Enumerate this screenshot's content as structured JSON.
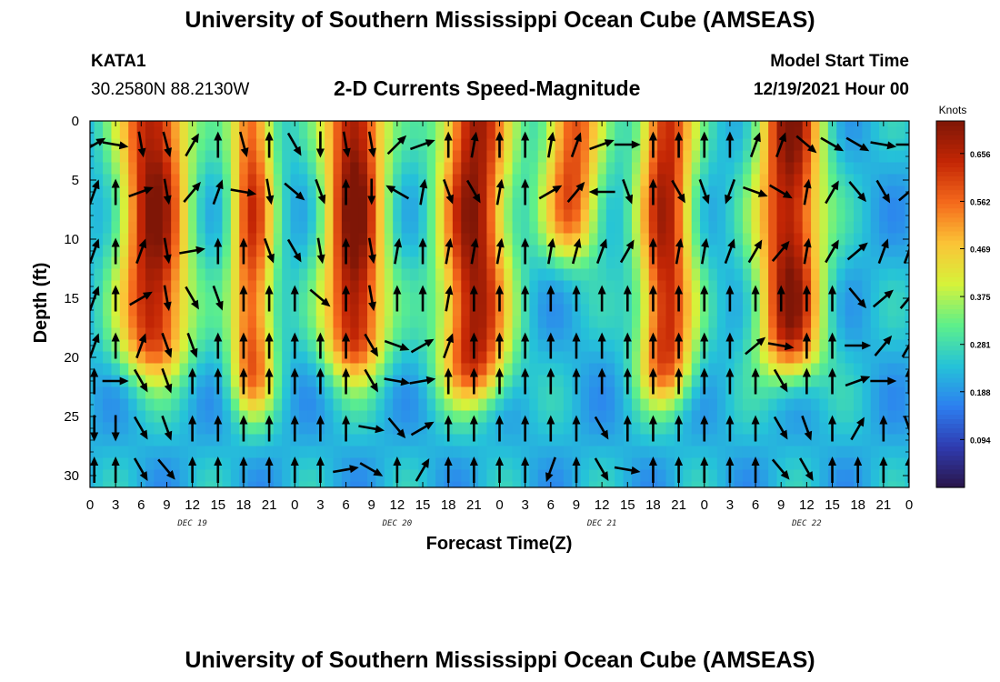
{
  "header": {
    "title": "University of Southern Mississippi Ocean Cube (AMSEAS)",
    "station": "KATA1",
    "coords": "30.2580N  88.2130W",
    "plot_title": "2-D Currents Speed-Magnitude",
    "model_start_label": "Model Start Time",
    "model_start_value": "12/19/2021 Hour 00"
  },
  "footer": {
    "title": "University of Southern Mississippi Ocean Cube (AMSEAS)"
  },
  "colors": {
    "ramp": [
      "#2a1548",
      "#2f3bb0",
      "#2d7ff0",
      "#25c3d8",
      "#5ef08a",
      "#d6f23a",
      "#fbc437",
      "#f56a1c",
      "#c42605",
      "#7f1606"
    ],
    "arrow": "#000000"
  },
  "chart_data": {
    "type": "heatmap",
    "title": "2-D Currents Speed-Magnitude",
    "xlabel": "Forecast Time(Z)",
    "ylabel": "Depth (ft)",
    "xlim_hours": [
      0,
      96
    ],
    "ylim_ft": [
      0,
      31
    ],
    "x_ticks": [
      {
        "h": 0,
        "label": "0"
      },
      {
        "h": 3,
        "label": "3"
      },
      {
        "h": 6,
        "label": "6"
      },
      {
        "h": 9,
        "label": "9"
      },
      {
        "h": 12,
        "label": "12"
      },
      {
        "h": 15,
        "label": "15"
      },
      {
        "h": 18,
        "label": "18"
      },
      {
        "h": 21,
        "label": "21"
      },
      {
        "h": 24,
        "label": "0"
      },
      {
        "h": 27,
        "label": "3"
      },
      {
        "h": 30,
        "label": "6"
      },
      {
        "h": 33,
        "label": "9"
      },
      {
        "h": 36,
        "label": "12"
      },
      {
        "h": 39,
        "label": "15"
      },
      {
        "h": 42,
        "label": "18"
      },
      {
        "h": 45,
        "label": "21"
      },
      {
        "h": 48,
        "label": "0"
      },
      {
        "h": 51,
        "label": "3"
      },
      {
        "h": 54,
        "label": "6"
      },
      {
        "h": 57,
        "label": "9"
      },
      {
        "h": 60,
        "label": "12"
      },
      {
        "h": 63,
        "label": "15"
      },
      {
        "h": 66,
        "label": "18"
      },
      {
        "h": 69,
        "label": "21"
      },
      {
        "h": 72,
        "label": "0"
      },
      {
        "h": 75,
        "label": "3"
      },
      {
        "h": 78,
        "label": "6"
      },
      {
        "h": 81,
        "label": "9"
      },
      {
        "h": 84,
        "label": "12"
      },
      {
        "h": 87,
        "label": "15"
      },
      {
        "h": 90,
        "label": "18"
      },
      {
        "h": 93,
        "label": "21"
      },
      {
        "h": 96,
        "label": "0"
      }
    ],
    "date_labels": [
      {
        "h": 12,
        "label": "DEC 19"
      },
      {
        "h": 36,
        "label": "DEC 20"
      },
      {
        "h": 60,
        "label": "DEC 21"
      },
      {
        "h": 84,
        "label": "DEC 22"
      }
    ],
    "y_ticks": [
      0,
      5,
      10,
      15,
      20,
      25,
      30
    ],
    "colorbar": {
      "units": "Knots",
      "min": 0.0,
      "max": 0.72,
      "tick_values": [
        0.094,
        0.188,
        0.281,
        0.375,
        0.469,
        0.562,
        0.656
      ],
      "tick_labels": [
        "0.094",
        "0.188",
        "0.281",
        "0.375",
        "0.469",
        "0.562",
        "0.656"
      ]
    },
    "speed_bands": [
      {
        "center_h": 7.5,
        "width_h": 4.0,
        "peak": 0.7,
        "depth_ft": 21
      },
      {
        "center_h": 19.0,
        "width_h": 2.6,
        "peak": 0.6,
        "depth_ft": 24
      },
      {
        "center_h": 31.0,
        "width_h": 3.6,
        "peak": 0.72,
        "depth_ft": 21
      },
      {
        "center_h": 45.0,
        "width_h": 4.0,
        "peak": 0.7,
        "depth_ft": 23
      },
      {
        "center_h": 56.5,
        "width_h": 3.4,
        "peak": 0.6,
        "depth_ft": 11
      },
      {
        "center_h": 67.5,
        "width_h": 3.2,
        "peak": 0.66,
        "depth_ft": 23
      },
      {
        "center_h": 82.0,
        "width_h": 3.8,
        "peak": 0.7,
        "depth_ft": 21
      }
    ],
    "base_speed": 0.22,
    "vector_columns_h": [
      0.5,
      3,
      6,
      9,
      12,
      15,
      18,
      21,
      24,
      27,
      30,
      33,
      36,
      39,
      42,
      45,
      48,
      51,
      54,
      57,
      60,
      63,
      66,
      69,
      72,
      75,
      78,
      81,
      84,
      87,
      90,
      93,
      96
    ],
    "vector_rows_ft": [
      2,
      6,
      11,
      15,
      19,
      22,
      26,
      29.5
    ],
    "vector_directions_deg": [
      [
        60,
        100,
        170,
        165,
        30,
        0,
        165,
        0,
        150,
        180,
        170,
        170,
        45,
        70,
        0,
        10,
        0,
        0,
        10,
        20,
        70,
        90,
        0,
        0,
        0,
        0,
        20,
        20,
        130,
        120,
        120,
        100,
        90
      ],
      [
        20,
        0,
        70,
        170,
        40,
        20,
        100,
        170,
        130,
        160,
        0,
        180,
        300,
        10,
        160,
        150,
        10,
        0,
        60,
        40,
        270,
        160,
        0,
        150,
        160,
        200,
        110,
        120,
        10,
        30,
        140,
        150,
        50
      ],
      [
        20,
        0,
        20,
        170,
        80,
        0,
        0,
        160,
        150,
        170,
        0,
        170,
        10,
        0,
        10,
        10,
        10,
        0,
        10,
        15,
        20,
        30,
        0,
        10,
        10,
        20,
        30,
        40,
        10,
        30,
        50,
        20,
        20
      ],
      [
        20,
        0,
        60,
        170,
        150,
        160,
        0,
        0,
        0,
        130,
        0,
        170,
        0,
        0,
        10,
        0,
        0,
        0,
        0,
        0,
        0,
        0,
        0,
        0,
        0,
        0,
        0,
        0,
        0,
        0,
        140,
        50,
        40
      ],
      [
        20,
        0,
        20,
        160,
        160,
        0,
        0,
        0,
        0,
        0,
        0,
        150,
        110,
        60,
        20,
        0,
        0,
        0,
        0,
        0,
        0,
        0,
        0,
        0,
        0,
        0,
        50,
        100,
        0,
        0,
        90,
        40,
        30
      ],
      [
        0,
        90,
        150,
        160,
        0,
        0,
        0,
        0,
        0,
        0,
        0,
        150,
        100,
        80,
        0,
        0,
        0,
        0,
        0,
        0,
        0,
        0,
        0,
        0,
        0,
        0,
        0,
        150,
        0,
        0,
        70,
        90,
        0
      ],
      [
        180,
        180,
        150,
        160,
        0,
        0,
        0,
        0,
        0,
        0,
        0,
        100,
        140,
        60,
        0,
        0,
        0,
        0,
        0,
        0,
        150,
        0,
        0,
        0,
        0,
        0,
        0,
        150,
        160,
        0,
        30,
        0,
        160
      ],
      [
        0,
        0,
        150,
        140,
        0,
        0,
        0,
        0,
        0,
        0,
        80,
        120,
        0,
        30,
        0,
        0,
        0,
        0,
        200,
        0,
        150,
        100,
        0,
        0,
        0,
        0,
        0,
        140,
        150,
        0,
        0,
        0,
        0
      ]
    ]
  }
}
